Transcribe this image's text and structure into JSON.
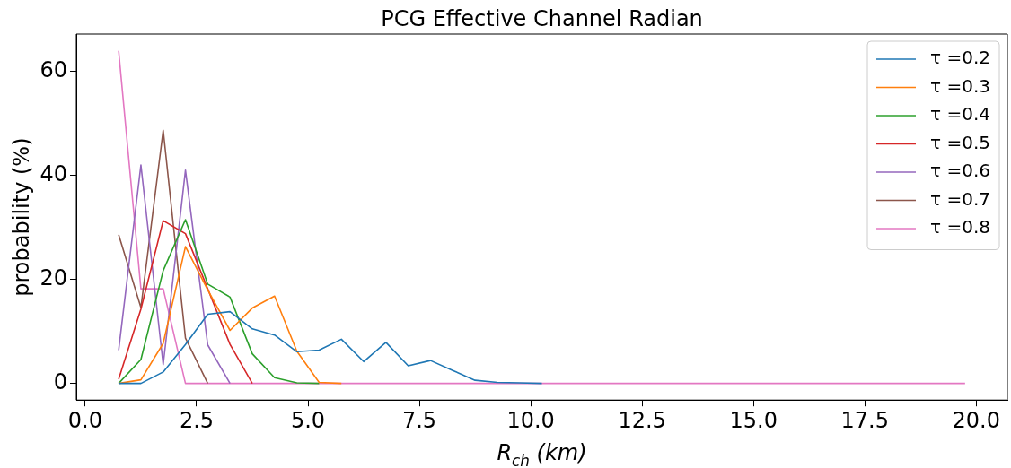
{
  "chart_data": {
    "type": "line",
    "title": "PCG Effective Channel Radian",
    "xlabel": "R$_{ch}$ (km)",
    "ylabel": "probability (%)",
    "x": [
      0.75,
      1.25,
      1.75,
      2.25,
      2.75,
      3.25,
      3.75,
      4.25,
      4.75,
      5.25,
      5.75,
      6.25,
      6.75,
      7.25,
      7.75,
      8.25,
      8.75,
      9.25,
      9.75,
      10.25,
      10.75,
      11.25,
      11.75,
      12.25,
      12.75,
      13.25,
      13.75,
      14.25,
      14.75,
      15.25,
      15.75,
      16.25,
      16.75,
      17.25,
      17.75,
      18.25,
      18.75,
      19.25,
      19.75
    ],
    "series": [
      {
        "name": "τ =0.2",
        "color": "#1f77b4",
        "values": [
          0,
          0,
          2.2,
          7.5,
          13.3,
          13.8,
          10.5,
          9.3,
          6.1,
          6.4,
          8.5,
          4.2,
          7.9,
          3.4,
          4.4,
          2.5,
          0.6,
          0.2,
          0.1,
          0,
          null,
          null,
          null,
          null,
          null,
          null,
          null,
          null,
          null,
          null,
          null,
          null,
          null,
          null,
          null,
          null,
          null,
          null,
          null
        ]
      },
      {
        "name": "τ =0.3",
        "color": "#ff7f0e",
        "values": [
          0,
          0.7,
          7.7,
          26.3,
          18,
          10.2,
          14.5,
          16.8,
          6.2,
          0.2,
          0,
          null,
          null,
          null,
          null,
          null,
          null,
          null,
          null,
          null,
          null,
          null,
          null,
          null,
          null,
          null,
          null,
          null,
          null,
          null,
          null,
          null,
          null,
          null,
          null,
          null,
          null,
          null,
          null
        ]
      },
      {
        "name": "τ =0.4",
        "color": "#2ca02c",
        "values": [
          0,
          4.6,
          21.7,
          31.5,
          19.1,
          16.6,
          5.7,
          1.1,
          0.1,
          0,
          null,
          null,
          null,
          null,
          null,
          null,
          null,
          null,
          null,
          null,
          null,
          null,
          null,
          null,
          null,
          null,
          null,
          null,
          null,
          null,
          null,
          null,
          null,
          null,
          null,
          null,
          null,
          null,
          null
        ]
      },
      {
        "name": "τ =0.5",
        "color": "#d62728",
        "values": [
          0.8,
          14.3,
          31.3,
          28.8,
          18.2,
          7.5,
          0,
          null,
          null,
          null,
          null,
          null,
          null,
          null,
          null,
          null,
          null,
          null,
          null,
          null,
          null,
          null,
          null,
          null,
          null,
          null,
          null,
          null,
          null,
          null,
          null,
          null,
          null,
          null,
          null,
          null,
          null,
          null,
          null
        ]
      },
      {
        "name": "τ =0.6",
        "color": "#9467bd",
        "values": [
          6.4,
          42,
          3.6,
          41,
          7.4,
          0,
          null,
          null,
          null,
          null,
          null,
          null,
          null,
          null,
          null,
          null,
          null,
          null,
          null,
          null,
          null,
          null,
          null,
          null,
          null,
          null,
          null,
          null,
          null,
          null,
          null,
          null,
          null,
          null,
          null,
          null,
          null,
          null,
          null
        ]
      },
      {
        "name": "τ =0.7",
        "color": "#8c564b",
        "values": [
          28.6,
          14.6,
          48.7,
          8.7,
          0,
          null,
          null,
          null,
          null,
          null,
          null,
          null,
          null,
          null,
          null,
          null,
          null,
          null,
          null,
          null,
          null,
          null,
          null,
          null,
          null,
          null,
          null,
          null,
          null,
          null,
          null,
          null,
          null,
          null,
          null,
          null,
          null,
          null,
          null
        ]
      },
      {
        "name": "τ =0.8",
        "color": "#e377c2",
        "values": [
          64,
          18.2,
          18.2,
          0,
          0,
          0,
          0,
          0,
          0,
          0,
          0,
          0,
          0,
          0,
          0,
          0,
          0,
          0,
          0,
          0,
          0,
          0,
          0,
          0,
          0,
          0,
          0,
          0,
          0,
          0,
          0,
          0,
          0,
          0,
          0,
          0,
          0,
          0,
          0
        ]
      }
    ],
    "xlim": [
      -0.2,
      20.7
    ],
    "ylim": [
      -3.2,
      67.2
    ],
    "xticks": [
      {
        "value": 0,
        "label": "0.0"
      },
      {
        "value": 2.5,
        "label": "2.5"
      },
      {
        "value": 5,
        "label": "5.0"
      },
      {
        "value": 7.5,
        "label": "7.5"
      },
      {
        "value": 10,
        "label": "10.0"
      },
      {
        "value": 12.5,
        "label": "12.5"
      },
      {
        "value": 15,
        "label": "15.0"
      },
      {
        "value": 17.5,
        "label": "17.5"
      },
      {
        "value": 20,
        "label": "20.0"
      }
    ],
    "yticks": [
      0,
      20,
      40,
      60
    ],
    "legend": "top right"
  }
}
